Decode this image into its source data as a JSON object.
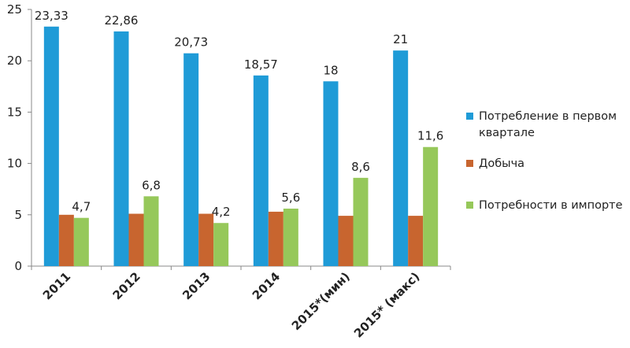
{
  "chart_data": {
    "type": "bar",
    "categories": [
      "2011",
      "2012",
      "2013",
      "2014",
      "2015*(мин)",
      "2015* (макс)"
    ],
    "series": [
      {
        "name": "Потребление в первом квартале",
        "color": "#1f9bd7",
        "values": [
          23.33,
          22.86,
          20.73,
          18.57,
          18,
          21
        ],
        "labels": [
          "23,33",
          "22,86",
          "20,73",
          "18,57",
          "18",
          "21"
        ]
      },
      {
        "name": "Добыча",
        "color": "#c8652f",
        "values": [
          5.0,
          5.1,
          5.1,
          5.3,
          4.9,
          4.9
        ],
        "labels": [
          "",
          "",
          "",
          "",
          "",
          ""
        ]
      },
      {
        "name": "Потребности  в импорте",
        "color": "#96c85a",
        "values": [
          4.7,
          6.8,
          4.2,
          5.6,
          8.6,
          11.6
        ],
        "labels": [
          "4,7",
          "6,8",
          "4,2",
          "5,6",
          "8,6",
          "11,6"
        ]
      }
    ],
    "yticks": [
      "0",
      "5",
      "10",
      "15",
      "20",
      "25"
    ],
    "ylim": [
      0,
      25
    ],
    "legend": {
      "position": "right",
      "entries": [
        "Потребление в первом квартале",
        "Добыча",
        "Потребности  в импорте"
      ]
    },
    "grid": false
  }
}
